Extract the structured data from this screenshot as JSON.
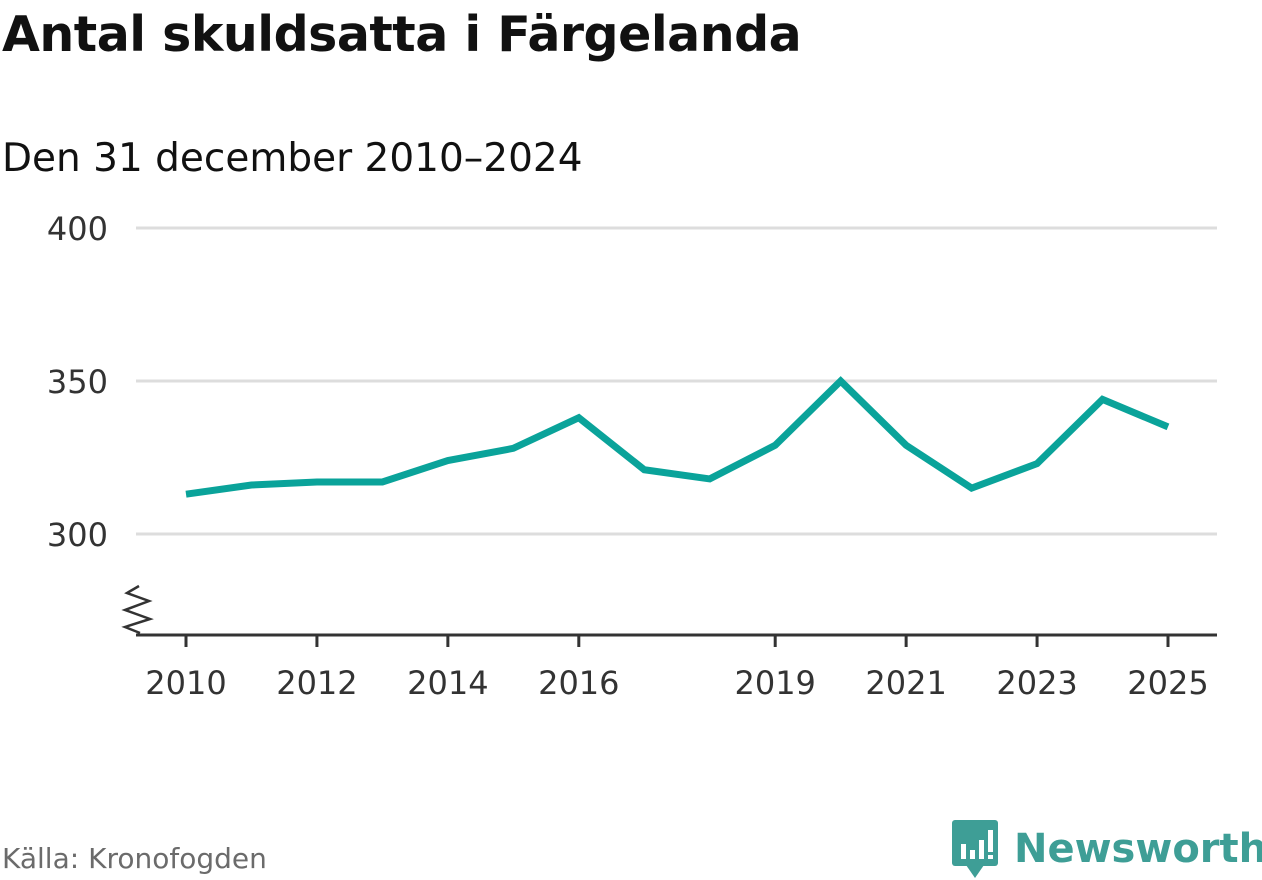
{
  "header": {
    "title": "Antal skuldsatta i Färgelanda",
    "subtitle": "Den 31 december 2010–2024"
  },
  "footer": {
    "source": "Källa: Kronofogden",
    "brand_name": "Newsworthy",
    "brand_icon": "newsworthy-bar-chart-bubble-icon"
  },
  "colors": {
    "line": "#0aa39a",
    "grid": "#dddddd",
    "axis": "#333333",
    "brand": "#3e9e96"
  },
  "chart_data": {
    "type": "line",
    "x_ticks": [
      "2010",
      "2012",
      "2014",
      "2016",
      "2019",
      "2021",
      "2023",
      "2025"
    ],
    "y_ticks": [
      "300",
      "350",
      "400"
    ],
    "ylim": [
      300,
      400
    ],
    "y_axis_break": true,
    "grid": true,
    "x": [
      2010,
      2011,
      2012,
      2013,
      2014,
      2015,
      2016,
      2017,
      2018,
      2019,
      2020,
      2021,
      2022,
      2023,
      2024,
      2025
    ],
    "series": [
      {
        "values": [
          313,
          316,
          317,
          317,
          324,
          328,
          338,
          321,
          318,
          329,
          350,
          329,
          315,
          323,
          344,
          335
        ]
      }
    ]
  }
}
